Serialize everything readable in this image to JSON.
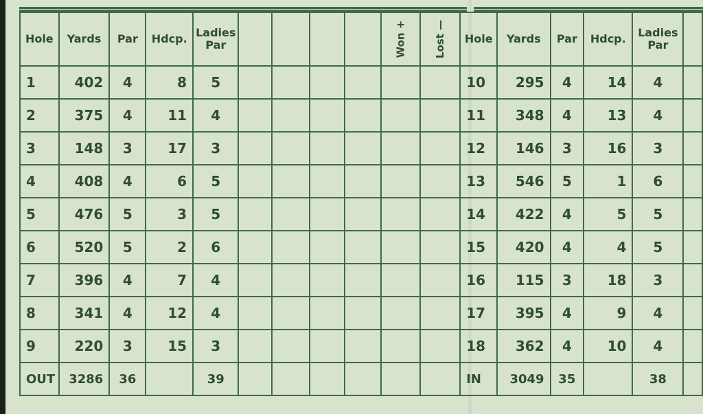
{
  "headers": {
    "hole": "Hole",
    "yards": "Yards",
    "par": "Par",
    "hdcp": "Hdcp.",
    "ladies_par_1": "Ladies",
    "ladies_par_2": "Par",
    "won": "Won +",
    "lost": "Lost —"
  },
  "front": [
    {
      "hole": "1",
      "yards": "402",
      "par": "4",
      "hdcp": "8",
      "ladies": "5"
    },
    {
      "hole": "2",
      "yards": "375",
      "par": "4",
      "hdcp": "11",
      "ladies": "4"
    },
    {
      "hole": "3",
      "yards": "148",
      "par": "3",
      "hdcp": "17",
      "ladies": "3"
    },
    {
      "hole": "4",
      "yards": "408",
      "par": "4",
      "hdcp": "6",
      "ladies": "5"
    },
    {
      "hole": "5",
      "yards": "476",
      "par": "5",
      "hdcp": "3",
      "ladies": "5"
    },
    {
      "hole": "6",
      "yards": "520",
      "par": "5",
      "hdcp": "2",
      "ladies": "6"
    },
    {
      "hole": "7",
      "yards": "396",
      "par": "4",
      "hdcp": "7",
      "ladies": "4"
    },
    {
      "hole": "8",
      "yards": "341",
      "par": "4",
      "hdcp": "12",
      "ladies": "4"
    },
    {
      "hole": "9",
      "yards": "220",
      "par": "3",
      "hdcp": "15",
      "ladies": "3"
    }
  ],
  "front_total": {
    "hole": "OUT",
    "yards": "3286",
    "par": "36",
    "hdcp": "",
    "ladies": "39"
  },
  "back": [
    {
      "hole": "10",
      "yards": "295",
      "par": "4",
      "hdcp": "14",
      "ladies": "4"
    },
    {
      "hole": "11",
      "yards": "348",
      "par": "4",
      "hdcp": "13",
      "ladies": "4"
    },
    {
      "hole": "12",
      "yards": "146",
      "par": "3",
      "hdcp": "16",
      "ladies": "3"
    },
    {
      "hole": "13",
      "yards": "546",
      "par": "5",
      "hdcp": "1",
      "ladies": "6"
    },
    {
      "hole": "14",
      "yards": "422",
      "par": "4",
      "hdcp": "5",
      "ladies": "5"
    },
    {
      "hole": "15",
      "yards": "420",
      "par": "4",
      "hdcp": "4",
      "ladies": "5"
    },
    {
      "hole": "16",
      "yards": "115",
      "par": "3",
      "hdcp": "18",
      "ladies": "3"
    },
    {
      "hole": "17",
      "yards": "395",
      "par": "4",
      "hdcp": "9",
      "ladies": "4"
    },
    {
      "hole": "18",
      "yards": "362",
      "par": "4",
      "hdcp": "10",
      "ladies": "4"
    }
  ],
  "back_total": {
    "hole": "IN",
    "yards": "3049",
    "par": "35",
    "hdcp": "",
    "ladies": "38"
  },
  "colors": {
    "card": "#d7e3cd",
    "ink": "#3f6b47"
  }
}
